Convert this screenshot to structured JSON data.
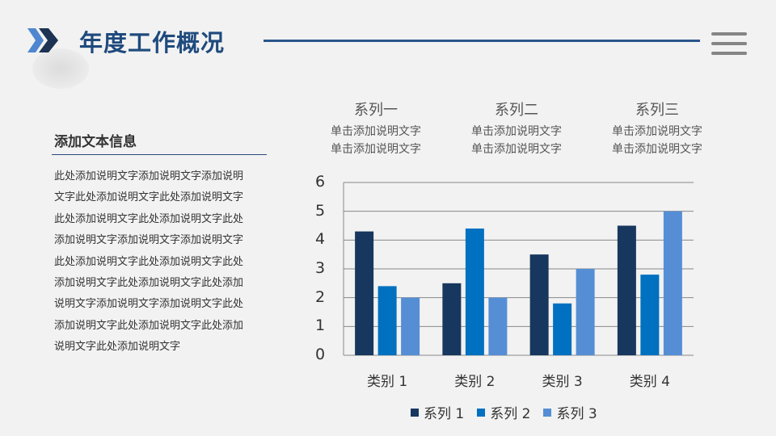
{
  "header": {
    "title": "年度工作概况",
    "menu_icon": "hamburger-icon",
    "logo_icon": "double-chevron-icon"
  },
  "side": {
    "title": "添加文本信息",
    "lines": [
      "此处添加说明文字添加说明文字添加说明",
      "文字此处添加说明文字此处添加说明文字",
      "此处添加说明文字此处添加说明文字此处",
      "添加说明文字添加说明文字添加说明文字",
      "此处添加说明文字此处添加说明文字此处",
      "添加说明文字此处添加说明文字此处添加",
      "说明文字添加说明文字添加说明文字此处",
      "添加说明文字此处添加说明文字此处添加",
      "说明文字此处添加说明文字"
    ]
  },
  "series_heads": [
    {
      "title": "系列一",
      "desc1": "单击添加说明文字",
      "desc2": "单击添加说明文字"
    },
    {
      "title": "系列二",
      "desc1": "单击添加说明文字",
      "desc2": "单击添加说明文字"
    },
    {
      "title": "系列三",
      "desc1": "单击添加说明文字",
      "desc2": "单击添加说明文字"
    }
  ],
  "chart_data": {
    "type": "bar",
    "categories": [
      "类别 1",
      "类别 2",
      "类别 3",
      "类别 4"
    ],
    "series": [
      {
        "name": "系列 1",
        "values": [
          4.3,
          2.5,
          3.5,
          4.5
        ],
        "color": "#17375e"
      },
      {
        "name": "系列 2",
        "values": [
          2.4,
          4.4,
          1.8,
          2.8
        ],
        "color": "#0070c0"
      },
      {
        "name": "系列 3",
        "values": [
          2.0,
          2.0,
          3.0,
          5.0
        ],
        "color": "#558ed5"
      }
    ],
    "ylim": [
      0,
      6
    ],
    "yticks": [
      "0",
      "1",
      "2",
      "3",
      "4",
      "5",
      "6"
    ],
    "grid": true,
    "legend": "bottom"
  }
}
